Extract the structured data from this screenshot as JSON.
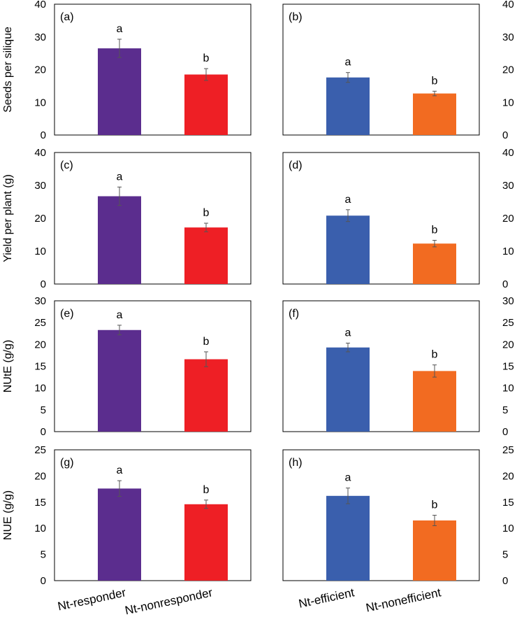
{
  "chart_data": [
    {
      "panel": "(a)",
      "type": "bar",
      "ylabel": "Seeds per silique",
      "ylim": [
        0,
        40
      ],
      "ticks": [
        0,
        10,
        20,
        30,
        40
      ],
      "categories": [
        "Nt-responder",
        "Nt-nonresponder"
      ],
      "values": [
        26.5,
        18.5
      ],
      "errors": [
        2.8,
        1.8
      ],
      "sig": [
        "a",
        "b"
      ],
      "colors": [
        "#5b2d8e",
        "#ee1f25"
      ],
      "tick_side": "left"
    },
    {
      "panel": "(b)",
      "type": "bar",
      "ylabel": "",
      "ylim": [
        0,
        40
      ],
      "ticks": [
        0,
        10,
        20,
        30,
        40
      ],
      "categories": [
        "Nt-efficient",
        "Nt-nonefficient"
      ],
      "values": [
        17.6,
        12.7
      ],
      "errors": [
        1.5,
        0.7
      ],
      "sig": [
        "a",
        "b"
      ],
      "colors": [
        "#3a5fad",
        "#f26b21"
      ],
      "tick_side": "right"
    },
    {
      "panel": "(c)",
      "type": "bar",
      "ylabel": "Yield per plant (g)",
      "ylim": [
        0,
        40
      ],
      "ticks": [
        0,
        10,
        20,
        30,
        40
      ],
      "categories": [
        "Nt-responder",
        "Nt-nonresponder"
      ],
      "values": [
        26.7,
        17.2
      ],
      "errors": [
        2.8,
        1.3
      ],
      "sig": [
        "a",
        "b"
      ],
      "colors": [
        "#5b2d8e",
        "#ee1f25"
      ],
      "tick_side": "left"
    },
    {
      "panel": "(d)",
      "type": "bar",
      "ylabel": "",
      "ylim": [
        0,
        40
      ],
      "ticks": [
        0,
        10,
        20,
        30,
        40
      ],
      "categories": [
        "Nt-efficient",
        "Nt-nonefficient"
      ],
      "values": [
        20.8,
        12.3
      ],
      "errors": [
        1.8,
        1.0
      ],
      "sig": [
        "a",
        "b"
      ],
      "colors": [
        "#3a5fad",
        "#f26b21"
      ],
      "tick_side": "right"
    },
    {
      "panel": "(e)",
      "type": "bar",
      "ylabel": "NUtE (g/g)",
      "ylim": [
        0,
        30
      ],
      "ticks": [
        0,
        5,
        10,
        15,
        20,
        25,
        30
      ],
      "categories": [
        "Nt-responder",
        "Nt-nonresponder"
      ],
      "values": [
        23.3,
        16.6
      ],
      "errors": [
        1.1,
        1.7
      ],
      "sig": [
        "a",
        "b"
      ],
      "colors": [
        "#5b2d8e",
        "#ee1f25"
      ],
      "tick_side": "left"
    },
    {
      "panel": "(f)",
      "type": "bar",
      "ylabel": "",
      "ylim": [
        0,
        30
      ],
      "ticks": [
        0,
        5,
        10,
        15,
        20,
        25,
        30
      ],
      "categories": [
        "Nt-efficient",
        "Nt-nonefficient"
      ],
      "values": [
        19.3,
        13.9
      ],
      "errors": [
        1.0,
        1.4
      ],
      "sig": [
        "a",
        "b"
      ],
      "colors": [
        "#3a5fad",
        "#f26b21"
      ],
      "tick_side": "right"
    },
    {
      "panel": "(g)",
      "type": "bar",
      "ylabel": "NUE (g/g)",
      "ylim": [
        0,
        25
      ],
      "ticks": [
        0,
        5,
        10,
        15,
        20,
        25
      ],
      "categories": [
        "Nt-responder",
        "Nt-nonresponder"
      ],
      "values": [
        17.6,
        14.6
      ],
      "errors": [
        1.5,
        0.8
      ],
      "sig": [
        "a",
        "b"
      ],
      "colors": [
        "#5b2d8e",
        "#ee1f25"
      ],
      "tick_side": "left"
    },
    {
      "panel": "(h)",
      "type": "bar",
      "ylabel": "",
      "ylim": [
        0,
        25
      ],
      "ticks": [
        0,
        5,
        10,
        15,
        20,
        25
      ],
      "categories": [
        "Nt-efficient",
        "Nt-nonefficient"
      ],
      "values": [
        16.2,
        11.5
      ],
      "errors": [
        1.5,
        1.0
      ],
      "sig": [
        "a",
        "b"
      ],
      "colors": [
        "#3a5fad",
        "#f26b21"
      ],
      "tick_side": "right"
    }
  ]
}
